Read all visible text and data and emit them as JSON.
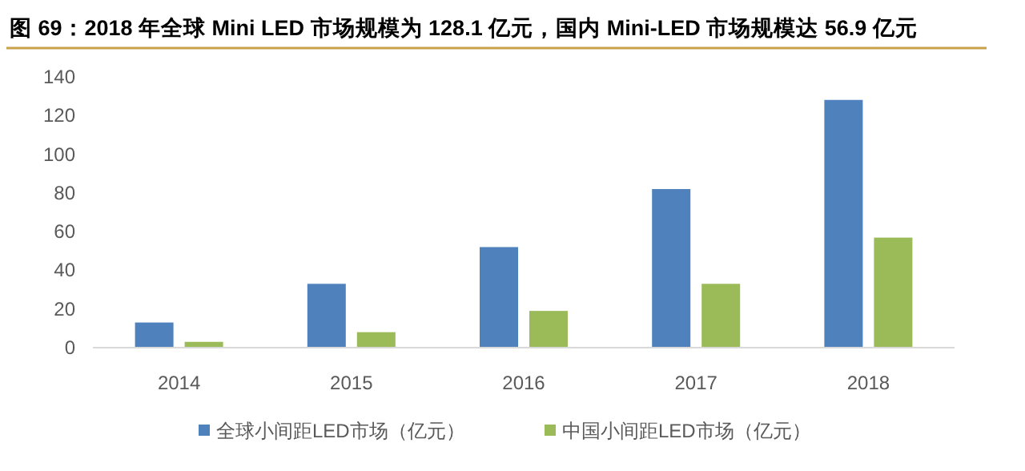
{
  "chart_data": {
    "type": "bar",
    "title": "图 69：2018 年全球 Mini LED 市场规模为 128.1 亿元，国内 Mini-LED 市场规模达 56.9 亿元",
    "categories": [
      "2014",
      "2015",
      "2016",
      "2017",
      "2018"
    ],
    "series": [
      {
        "name": "全球小间距LED市场（亿元）",
        "color": "#4f81bd",
        "values": [
          13,
          33,
          52,
          82,
          128.1
        ]
      },
      {
        "name": "中国小间距LED市场（亿元）",
        "color": "#9bbb59",
        "values": [
          3,
          8,
          19,
          33,
          56.9
        ]
      }
    ],
    "ylim": [
      0,
      140
    ],
    "yticks": [
      0,
      20,
      40,
      60,
      80,
      100,
      120,
      140
    ],
    "grid": false,
    "legend": "bottom"
  }
}
